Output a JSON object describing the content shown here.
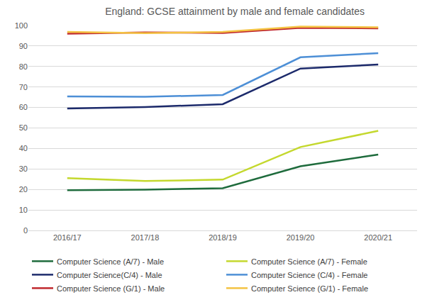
{
  "chart_data": {
    "type": "line",
    "title": "England: GCSE attainment by male and female candidates",
    "categories": [
      "2016/17",
      "2017/18",
      "2018/19",
      "2019/20",
      "2020/21"
    ],
    "series": [
      {
        "name": "Computer Science (A/7) - Male",
        "color": "#1e6b3c",
        "values": [
          19.6,
          19.9,
          20.6,
          31.3,
          37.0
        ]
      },
      {
        "name": "Computer Science (A/7) - Female",
        "color": "#c4d82e",
        "values": [
          25.5,
          24.1,
          24.8,
          40.7,
          48.6
        ]
      },
      {
        "name": "Computer Science(C/4) - Male",
        "color": "#1c2a6b",
        "values": [
          59.5,
          60.2,
          61.6,
          79.0,
          81.0
        ]
      },
      {
        "name": "Computer Science (C/4) - Female",
        "color": "#4d8fd6",
        "values": [
          65.4,
          65.2,
          66.1,
          84.5,
          86.5
        ]
      },
      {
        "name": "Computer Science (G/1) - Male",
        "color": "#c0282d",
        "values": [
          96.0,
          96.6,
          96.4,
          98.9,
          98.6
        ]
      },
      {
        "name": "Computer Science (G/1) - Female",
        "color": "#f4c343",
        "values": [
          96.9,
          96.3,
          96.9,
          99.5,
          99.1
        ]
      }
    ],
    "ylim": [
      0,
      100
    ],
    "yticks": [
      0,
      10,
      20,
      30,
      40,
      50,
      60,
      70,
      80,
      90,
      100
    ],
    "grid": true,
    "legend": "bottom"
  }
}
